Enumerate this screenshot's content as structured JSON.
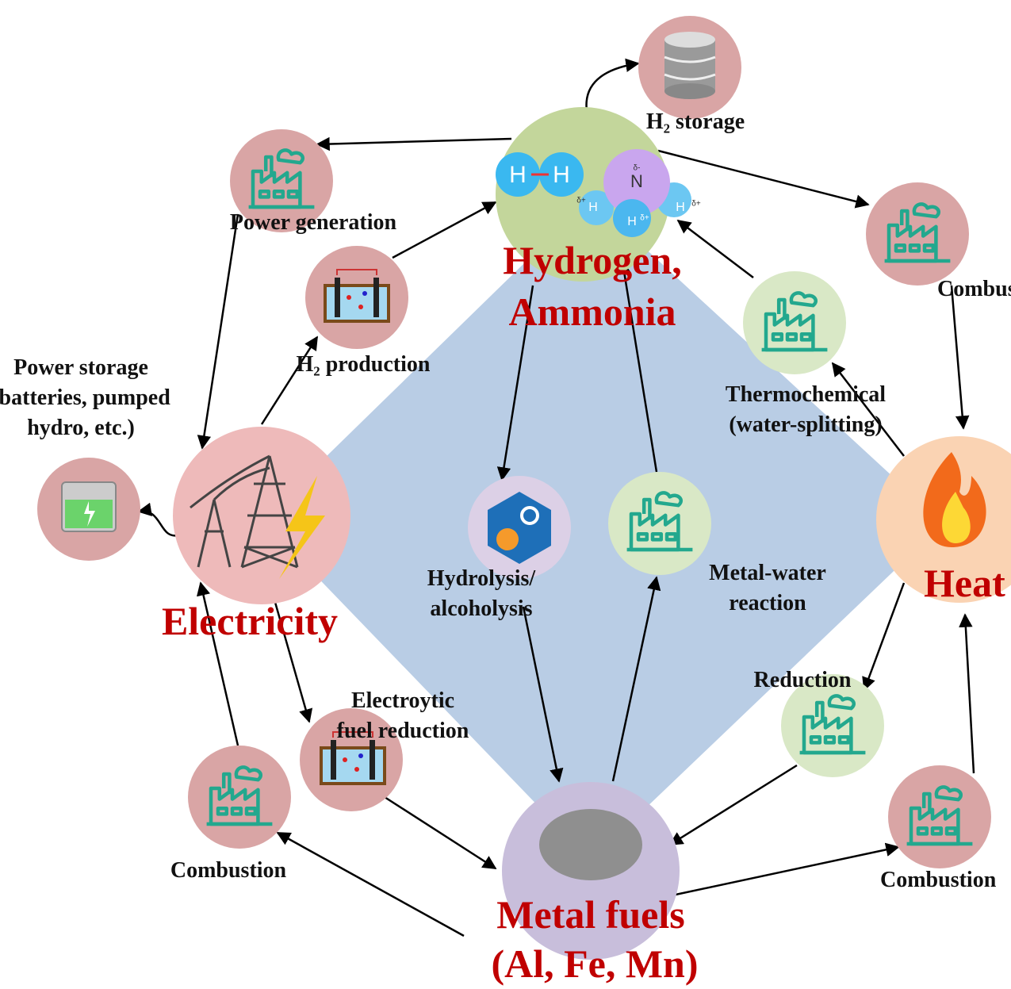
{
  "nodes": {
    "hydrogen": {
      "lines": [
        "Hydrogen,",
        "Ammonia"
      ]
    },
    "h2_storage": {
      "label": "H₂ storage"
    },
    "power_generation": {
      "label": "Power generation"
    },
    "combustion_top_right": {
      "label": "Combustion"
    },
    "h2_production": {
      "label": "H₂ production"
    },
    "thermochemical": {
      "lines": [
        "Thermochemical",
        "(water-splitting)"
      ]
    },
    "power_storage": {
      "lines": [
        "Power storage",
        "(batteries, pumped",
        "hydro, etc.)"
      ]
    },
    "electricity": {
      "label": "Electricity"
    },
    "heat": {
      "label": "Heat"
    },
    "hydrolysis": {
      "lines": [
        "Hydrolysis/",
        "alcoholysis"
      ]
    },
    "metal_water": {
      "lines": [
        "Metal-water",
        "reaction"
      ]
    },
    "reduction": {
      "label": "Reduction"
    },
    "electrolytic": {
      "lines": [
        "Electroytic",
        "fuel reduction"
      ]
    },
    "combustion_bottom_left": {
      "label": "Combustion"
    },
    "combustion_bottom_right": {
      "label": "Combustion"
    },
    "metal_fuels": {
      "lines": [
        "Metal fuels",
        "(Al, Fe, Mn)"
      ]
    }
  },
  "molecules": {
    "hydrogen_atoms": [
      "H",
      "H"
    ],
    "ammonia_atoms": [
      "N",
      "H",
      "H",
      "H"
    ],
    "charges": [
      "δ-",
      "δ+",
      "δ+",
      "δ+"
    ]
  }
}
